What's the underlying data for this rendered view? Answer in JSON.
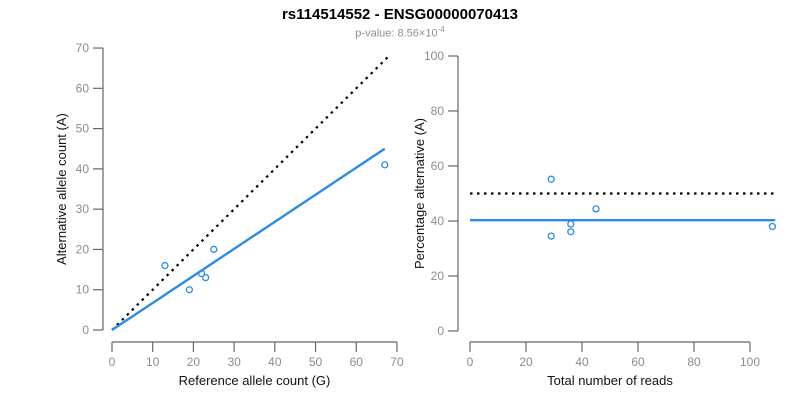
{
  "header": {
    "title": "rs114514552 - ENSG00000070413",
    "subtitle_text": "p-value: 8.56×10",
    "p_value_exponent": "-4"
  },
  "colors": {
    "point_blue": "#2b8ce8",
    "fit_line_blue": "#2b8ce8",
    "reference_line_black": "#000000",
    "axis_gray": "#666666",
    "tick_label_gray": "#8c8c8c"
  },
  "chart_data": [
    {
      "type": "scatter",
      "name": "allele-counts",
      "xlabel": "Reference allele count (G)",
      "ylabel": "Alternative allele count (A)",
      "xlim": [
        0,
        70
      ],
      "ylim": [
        0,
        70
      ],
      "xticks": [
        0,
        10,
        20,
        30,
        40,
        50,
        60,
        70
      ],
      "yticks": [
        0,
        10,
        20,
        30,
        40,
        50,
        60,
        70
      ],
      "grid": false,
      "points": [
        [
          13,
          16
        ],
        [
          19,
          10
        ],
        [
          22,
          14
        ],
        [
          23,
          13
        ],
        [
          25,
          20
        ],
        [
          67,
          41
        ]
      ],
      "lines": [
        {
          "name": "identity",
          "style": "dotted",
          "color": "#000000",
          "from": [
            0,
            0
          ],
          "to": [
            68,
            68
          ]
        },
        {
          "name": "fit",
          "style": "solid",
          "color": "#2b8ce8",
          "from": [
            0,
            0
          ],
          "to": [
            67,
            45
          ]
        }
      ]
    },
    {
      "type": "scatter",
      "name": "percentage-vs-coverage",
      "xlabel": "Total number of reads",
      "ylabel": "Percentage alternative (A)",
      "xlim": [
        0,
        110
      ],
      "ylim": [
        0,
        100
      ],
      "xticks": [
        0,
        20,
        40,
        60,
        80,
        100
      ],
      "yticks": [
        0,
        20,
        40,
        60,
        80,
        100
      ],
      "grid": false,
      "points": [
        [
          29,
          55.2
        ],
        [
          29,
          34.5
        ],
        [
          36,
          38.9
        ],
        [
          36,
          36.1
        ],
        [
          45,
          44.4
        ],
        [
          108,
          38
        ]
      ],
      "lines": [
        {
          "name": "expected-50pct",
          "style": "dotted",
          "color": "#000000",
          "from": [
            0,
            50
          ],
          "to": [
            109,
            50
          ]
        },
        {
          "name": "observed-mean",
          "style": "solid",
          "color": "#2b8ce8",
          "from": [
            0,
            40.3
          ],
          "to": [
            109,
            40.3
          ]
        }
      ]
    }
  ]
}
